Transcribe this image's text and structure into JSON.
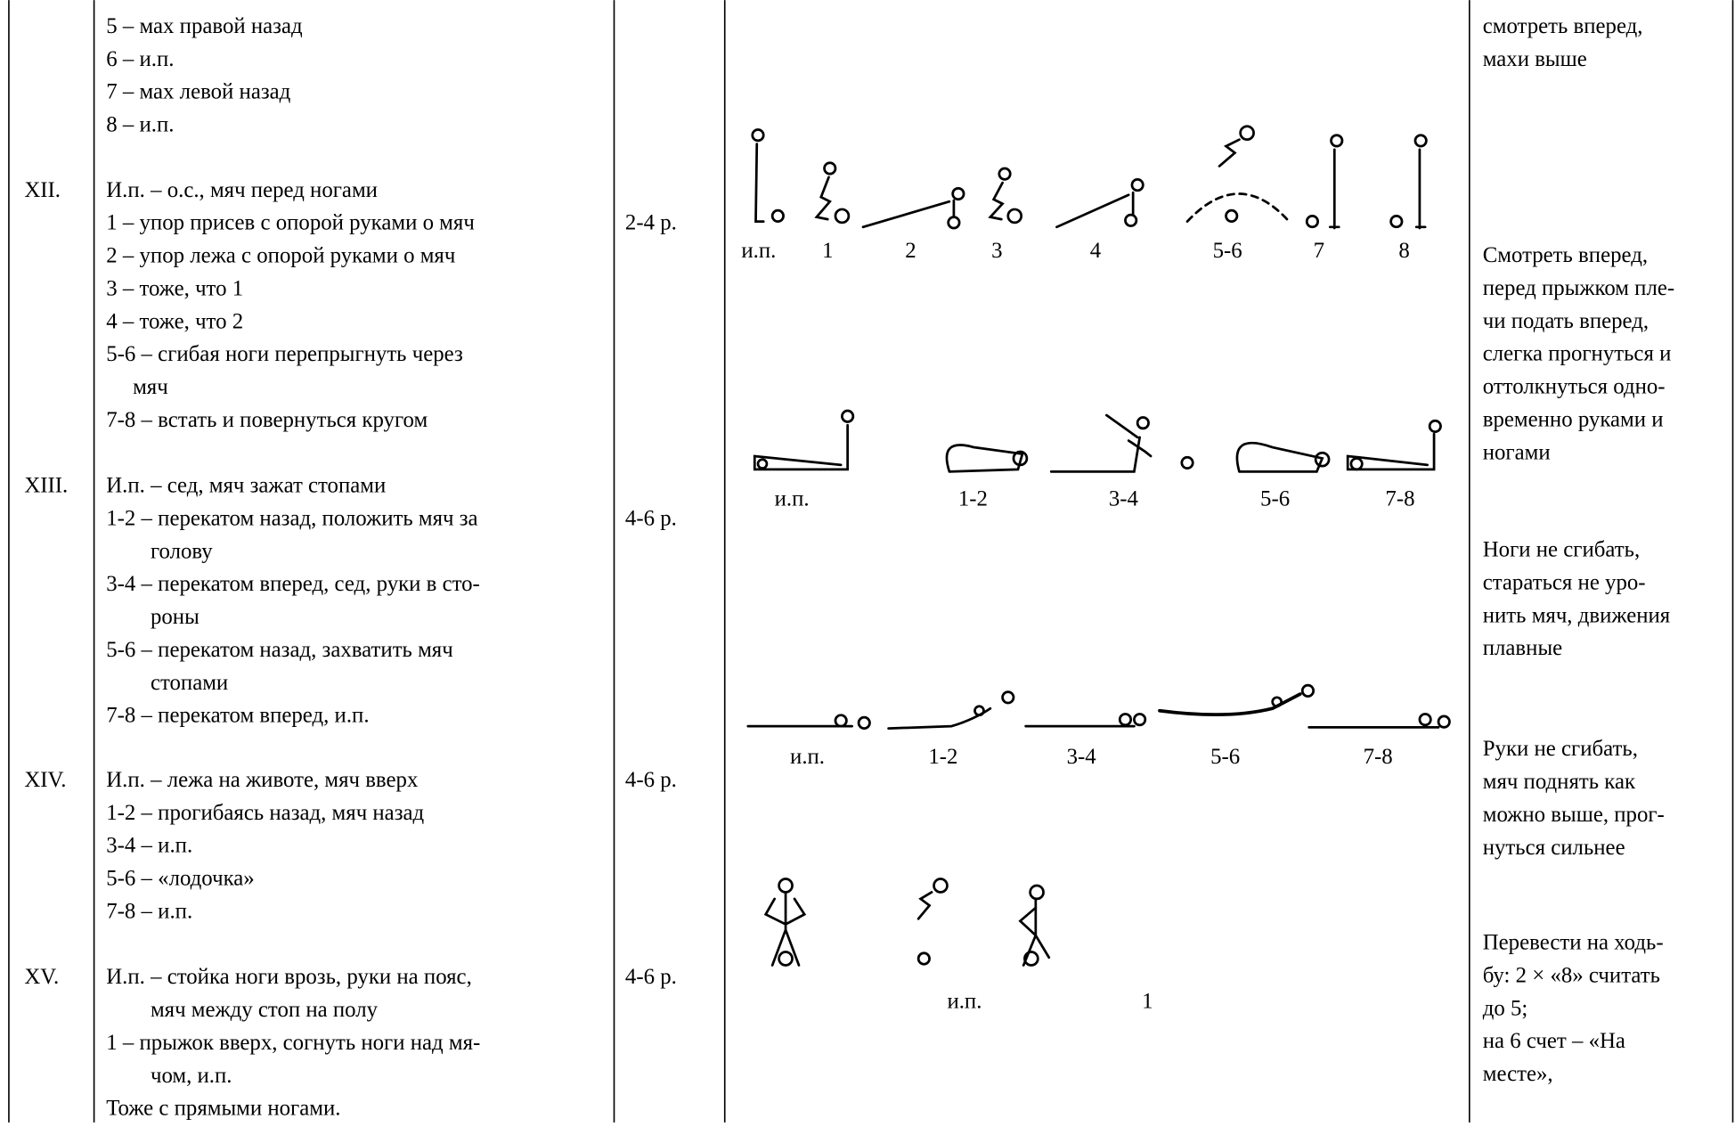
{
  "top": {
    "lines": [
      "5 – мах правой назад",
      "6 – и.п.",
      "7 – мах левой назад",
      "8 – и.п."
    ],
    "notes": [
      "смотреть вперед,",
      "махи выше"
    ]
  },
  "rows": [
    {
      "number": "XII.",
      "lines": [
        "И.п. – о.с., мяч перед ногами",
        "1 – упор присев с опорой руками о мяч",
        "2 – упор лежа с опорой руками о мяч",
        "3 – тоже, что 1",
        "4 – тоже, что 2",
        "5-6 – сгибая ноги перепрыгнуть через",
        "мяч",
        "7-8 – встать и повернуться кругом"
      ],
      "reps": "2-4 р.",
      "figure_labels": [
        "и.п.",
        "1",
        "2",
        "3",
        "4",
        "5-6",
        "7",
        "8"
      ],
      "notes": [
        "Смотреть вперед,",
        "перед прыжком пле-",
        "чи подать вперед,",
        "слегка прогнуться и",
        "оттолкнуться одно-",
        "временно руками и",
        "ногами"
      ]
    },
    {
      "number": "XIII.",
      "lines": [
        "И.п. – сед, мяч зажат стопами",
        "1-2 – перекатом назад, положить мяч за",
        "голову",
        "3-4 – перекатом вперед, сед, руки в сто-",
        "роны",
        "5-6 – перекатом назад, захватить мяч",
        "стопами",
        "7-8 – перекатом вперед, и.п."
      ],
      "reps": "4-6 р.",
      "figure_labels": [
        "и.п.",
        "1-2",
        "3-4",
        "5-6",
        "7-8"
      ],
      "notes": [
        "Ноги не сгибать,",
        "стараться не уро-",
        "нить мяч, движения",
        "плавные"
      ]
    },
    {
      "number": "XIV.",
      "lines": [
        "И.п. – лежа на животе, мяч вверх",
        "1-2 – прогибаясь назад, мяч назад",
        "3-4 – и.п.",
        "5-6 – «лодочка»",
        "7-8 – и.п."
      ],
      "reps": "4-6 р.",
      "figure_labels": [
        "и.п.",
        "1-2",
        "3-4",
        "5-6",
        "7-8"
      ],
      "notes": [
        "Руки не сгибать,",
        "мяч поднять как",
        "можно выше, прог-",
        "нуться сильнее"
      ]
    },
    {
      "number": "XV.",
      "lines": [
        "И.п. – стойка ноги врозь, руки на пояс,",
        "мяч между стоп на полу",
        "1 – прыжок вверх, согнуть ноги над мя-",
        "чом, и.п.",
        "Тоже с прямыми ногами."
      ],
      "reps": "4-6 р.",
      "figure_labels": [
        "и.п.",
        "1"
      ],
      "notes": [
        "Перевести на ходь-",
        "бу: 2 × «8» считать",
        "до 5;",
        "на 6 счет – «На",
        "месте»,"
      ]
    }
  ]
}
